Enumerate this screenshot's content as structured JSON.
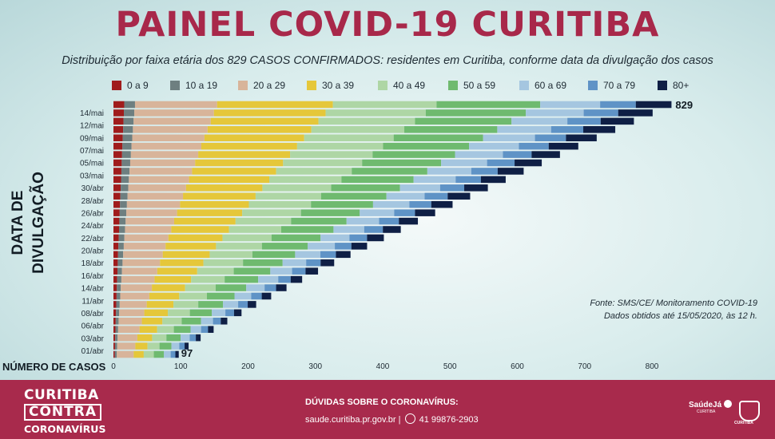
{
  "header": {
    "title": "PAINEL COVID-19 CURITIBA",
    "subtitle": "Distribuição por faixa etária dos 829 CASOS CONFIRMADOS: residentes em Curitiba, conforme data da divulgação dos casos"
  },
  "chart_data": {
    "type": "bar",
    "orientation": "horizontal",
    "stacked": true,
    "title": "PAINEL COVID-19 CURITIBA",
    "xlabel": "NÚMERO DE CASOS",
    "ylabel": "DATA DE DIVULGAÇÃO",
    "xlim": [
      0,
      850
    ],
    "xticks": [
      0,
      100,
      200,
      300,
      400,
      500,
      600,
      700,
      800
    ],
    "series_names": [
      "0 a 9",
      "10 a 19",
      "20 a 29",
      "30 a 39",
      "40 a 49",
      "50 a 59",
      "60 a 69",
      "70 a 79",
      "80+"
    ],
    "series_colors": [
      "#a01c1c",
      "#6e7f80",
      "#d8b49a",
      "#e5c73a",
      "#aed6a5",
      "#6fba6f",
      "#a5c6e0",
      "#5f93c6",
      "#0f1f45"
    ],
    "date_labels": [
      "14/mai",
      "12/mai",
      "09/mai",
      "07/mai",
      "05/mai",
      "03/mai",
      "30/abr",
      "28/abr",
      "26/abr",
      "24/abr",
      "22/abr",
      "20/abr",
      "18/abr",
      "16/abr",
      "14/abr",
      "11/abr",
      "08/abr",
      "06/abr",
      "03/abr",
      "01/abr"
    ],
    "first_total": 97,
    "last_total": 829,
    "composition_first": [
      2,
      3,
      25,
      15,
      15,
      15,
      10,
      7,
      5
    ],
    "composition_last": [
      16,
      16,
      122,
      172,
      154,
      154,
      89,
      53,
      53
    ],
    "data_labels": [
      "829",
      "97"
    ],
    "rows_count": 31
  },
  "source": {
    "line1": "Fonte: SMS/CE/ Monitoramento COVID-19",
    "line2": "Dados obtidos até 15/05/2020, às 12 h."
  },
  "footer": {
    "brand_line1": "CURITIBA",
    "brand_line2": "CONTRA",
    "brand_line3": "CORONAVÍRUS",
    "contact_title": "DÚVIDAS SOBRE O CORONAVÍRUS:",
    "contact_site": "saude.curitiba.pr.gov.br",
    "contact_sep": "|",
    "contact_phone": "41 99876-2903",
    "saude_logo": "SaúdeJá",
    "saude_sub": "CURITIBA",
    "crest_label": "CURITIBA"
  }
}
